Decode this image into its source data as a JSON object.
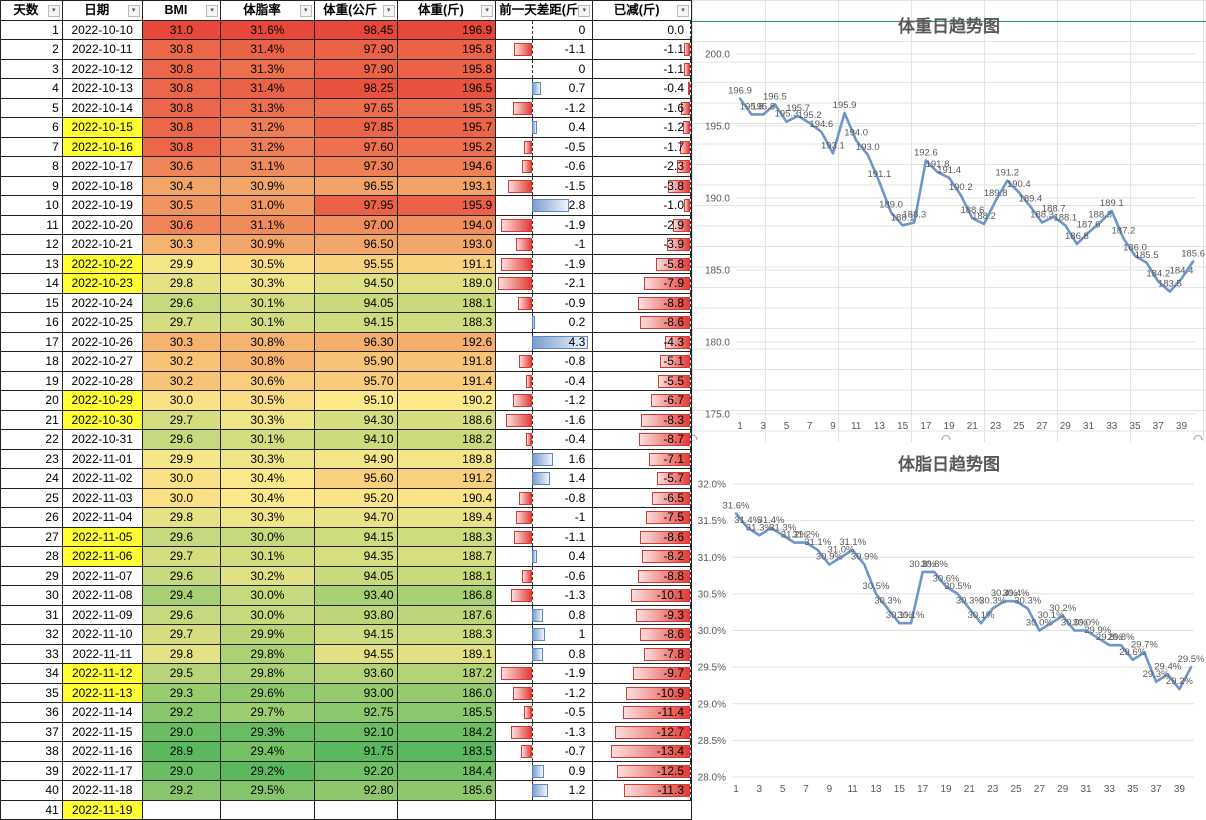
{
  "table": {
    "headers": [
      "天数",
      "日期",
      "BMI",
      "体脂率",
      "体重(公斤",
      "体重(斤)",
      "前一天差距(斤",
      "已减(斤)"
    ],
    "rows": [
      [
        "1",
        "2022-10-10",
        "31.0",
        "31.6%",
        "98.45",
        "196.9",
        "0",
        "0.0",
        0,
        0,
        false
      ],
      [
        "2",
        "2022-10-11",
        "30.8",
        "31.4%",
        "97.90",
        "195.8",
        "-1.1",
        "-1.1",
        -1.1,
        -1.1,
        false
      ],
      [
        "3",
        "2022-10-12",
        "30.8",
        "31.3%",
        "97.90",
        "195.8",
        "0",
        "-1.1",
        0,
        -1.1,
        false
      ],
      [
        "4",
        "2022-10-13",
        "30.8",
        "31.4%",
        "98.25",
        "196.5",
        "0.7",
        "-0.4",
        0.7,
        -0.4,
        false
      ],
      [
        "5",
        "2022-10-14",
        "30.8",
        "31.3%",
        "97.65",
        "195.3",
        "-1.2",
        "-1.6",
        -1.2,
        -1.6,
        false
      ],
      [
        "6",
        "2022-10-15",
        "30.8",
        "31.2%",
        "97.85",
        "195.7",
        "0.4",
        "-1.2",
        0.4,
        -1.2,
        true
      ],
      [
        "7",
        "2022-10-16",
        "30.8",
        "31.2%",
        "97.60",
        "195.2",
        "-0.5",
        "-1.7",
        -0.5,
        -1.7,
        true
      ],
      [
        "8",
        "2022-10-17",
        "30.6",
        "31.1%",
        "97.30",
        "194.6",
        "-0.6",
        "-2.3",
        -0.6,
        -2.3,
        false
      ],
      [
        "9",
        "2022-10-18",
        "30.4",
        "30.9%",
        "96.55",
        "193.1",
        "-1.5",
        "-3.8",
        -1.5,
        -3.8,
        false
      ],
      [
        "10",
        "2022-10-19",
        "30.5",
        "31.0%",
        "97.95",
        "195.9",
        "2.8",
        "-1.0",
        2.8,
        -1.0,
        false
      ],
      [
        "11",
        "2022-10-20",
        "30.6",
        "31.1%",
        "97.00",
        "194.0",
        "-1.9",
        "-2.9",
        -1.9,
        -2.9,
        false
      ],
      [
        "12",
        "2022-10-21",
        "30.3",
        "30.9%",
        "96.50",
        "193.0",
        "-1",
        "-3.9",
        -1,
        -3.9,
        false
      ],
      [
        "13",
        "2022-10-22",
        "29.9",
        "30.5%",
        "95.55",
        "191.1",
        "-1.9",
        "-5.8",
        -1.9,
        -5.8,
        true
      ],
      [
        "14",
        "2022-10-23",
        "29.8",
        "30.3%",
        "94.50",
        "189.0",
        "-2.1",
        "-7.9",
        -2.1,
        -7.9,
        true
      ],
      [
        "15",
        "2022-10-24",
        "29.6",
        "30.1%",
        "94.05",
        "188.1",
        "-0.9",
        "-8.8",
        -0.9,
        -8.8,
        false
      ],
      [
        "16",
        "2022-10-25",
        "29.7",
        "30.1%",
        "94.15",
        "188.3",
        "0.2",
        "-8.6",
        0.2,
        -8.6,
        false
      ],
      [
        "17",
        "2022-10-26",
        "30.3",
        "30.8%",
        "96.30",
        "192.6",
        "4.3",
        "-4.3",
        4.3,
        -4.3,
        false
      ],
      [
        "18",
        "2022-10-27",
        "30.2",
        "30.8%",
        "95.90",
        "191.8",
        "-0.8",
        "-5.1",
        -0.8,
        -5.1,
        false
      ],
      [
        "19",
        "2022-10-28",
        "30.2",
        "30.6%",
        "95.70",
        "191.4",
        "-0.4",
        "-5.5",
        -0.4,
        -5.5,
        false
      ],
      [
        "20",
        "2022-10-29",
        "30.0",
        "30.5%",
        "95.10",
        "190.2",
        "-1.2",
        "-6.7",
        -1.2,
        -6.7,
        true
      ],
      [
        "21",
        "2022-10-30",
        "29.7",
        "30.3%",
        "94.30",
        "188.6",
        "-1.6",
        "-8.3",
        -1.6,
        -8.3,
        true
      ],
      [
        "22",
        "2022-10-31",
        "29.6",
        "30.1%",
        "94.10",
        "188.2",
        "-0.4",
        "-8.7",
        -0.4,
        -8.7,
        false
      ],
      [
        "23",
        "2022-11-01",
        "29.9",
        "30.3%",
        "94.90",
        "189.8",
        "1.6",
        "-7.1",
        1.6,
        -7.1,
        false
      ],
      [
        "24",
        "2022-11-02",
        "30.0",
        "30.4%",
        "95.60",
        "191.2",
        "1.4",
        "-5.7",
        1.4,
        -5.7,
        false
      ],
      [
        "25",
        "2022-11-03",
        "30.0",
        "30.4%",
        "95.20",
        "190.4",
        "-0.8",
        "-6.5",
        -0.8,
        -6.5,
        false
      ],
      [
        "26",
        "2022-11-04",
        "29.8",
        "30.3%",
        "94.70",
        "189.4",
        "-1",
        "-7.5",
        -1,
        -7.5,
        false
      ],
      [
        "27",
        "2022-11-05",
        "29.6",
        "30.0%",
        "94.15",
        "188.3",
        "-1.1",
        "-8.6",
        -1.1,
        -8.6,
        true
      ],
      [
        "28",
        "2022-11-06",
        "29.7",
        "30.1%",
        "94.35",
        "188.7",
        "0.4",
        "-8.2",
        0.4,
        -8.2,
        true
      ],
      [
        "29",
        "2022-11-07",
        "29.6",
        "30.2%",
        "94.05",
        "188.1",
        "-0.6",
        "-8.8",
        -0.6,
        -8.8,
        false
      ],
      [
        "30",
        "2022-11-08",
        "29.4",
        "30.0%",
        "93.40",
        "186.8",
        "-1.3",
        "-10.1",
        -1.3,
        -10.1,
        false
      ],
      [
        "31",
        "2022-11-09",
        "29.6",
        "30.0%",
        "93.80",
        "187.6",
        "0.8",
        "-9.3",
        0.8,
        -9.3,
        false
      ],
      [
        "32",
        "2022-11-10",
        "29.7",
        "29.9%",
        "94.15",
        "188.3",
        "1",
        "-8.6",
        1,
        -8.6,
        false
      ],
      [
        "33",
        "2022-11-11",
        "29.8",
        "29.8%",
        "94.55",
        "189.1",
        "0.8",
        "-7.8",
        0.8,
        -7.8,
        false
      ],
      [
        "34",
        "2022-11-12",
        "29.5",
        "29.8%",
        "93.60",
        "187.2",
        "-1.9",
        "-9.7",
        -1.9,
        -9.7,
        true
      ],
      [
        "35",
        "2022-11-13",
        "29.3",
        "29.6%",
        "93.00",
        "186.0",
        "-1.2",
        "-10.9",
        -1.2,
        -10.9,
        true
      ],
      [
        "36",
        "2022-11-14",
        "29.2",
        "29.7%",
        "92.75",
        "185.5",
        "-0.5",
        "-11.4",
        -0.5,
        -11.4,
        false
      ],
      [
        "37",
        "2022-11-15",
        "29.0",
        "29.3%",
        "92.10",
        "184.2",
        "-1.3",
        "-12.7",
        -1.3,
        -12.7,
        false
      ],
      [
        "38",
        "2022-11-16",
        "28.9",
        "29.4%",
        "91.75",
        "183.5",
        "-0.7",
        "-13.4",
        -0.7,
        -13.4,
        false
      ],
      [
        "39",
        "2022-11-17",
        "29.0",
        "29.2%",
        "92.20",
        "184.4",
        "0.9",
        "-12.5",
        0.9,
        -12.5,
        false
      ],
      [
        "40",
        "2022-11-18",
        "29.2",
        "29.5%",
        "92.80",
        "185.6",
        "1.2",
        "-11.3",
        1.2,
        -11.3,
        false
      ],
      [
        "41",
        "2022-11-19",
        "",
        "",
        "",
        "",
        "",
        "",
        null,
        null,
        true
      ]
    ]
  },
  "colors": {
    "heat_high": "#e8483a",
    "heat_mid": "#fbe98a",
    "heat_low": "#5cb85f",
    "highlight": "#ffff33",
    "line": "#6f96cc"
  },
  "chart_data": [
    {
      "type": "line",
      "title": "体重日趋势图",
      "x": [
        1,
        2,
        3,
        4,
        5,
        6,
        7,
        8,
        9,
        10,
        11,
        12,
        13,
        14,
        15,
        16,
        17,
        18,
        19,
        20,
        21,
        22,
        23,
        24,
        25,
        26,
        27,
        28,
        29,
        30,
        31,
        32,
        33,
        34,
        35,
        36,
        37,
        38,
        39,
        40
      ],
      "x_tick_labels": [
        "1",
        "3",
        "5",
        "7",
        "9",
        "11",
        "13",
        "15",
        "17",
        "19",
        "21",
        "23",
        "25",
        "27",
        "29",
        "31",
        "33",
        "35",
        "37",
        "39"
      ],
      "y_tick_labels": [
        "175.0",
        "180.0",
        "185.0",
        "190.0",
        "195.0",
        "200.0"
      ],
      "ylim": [
        175,
        200
      ],
      "y_ticks": [
        175,
        180,
        185,
        190,
        195,
        200
      ],
      "series": [
        {
          "values": [
            196.9,
            195.8,
            195.8,
            196.5,
            195.3,
            195.7,
            195.2,
            194.6,
            193.1,
            195.9,
            194.0,
            193.0,
            191.1,
            189.0,
            188.1,
            188.3,
            192.6,
            191.8,
            191.4,
            190.2,
            188.6,
            188.2,
            189.8,
            191.2,
            190.4,
            189.4,
            188.3,
            188.7,
            188.1,
            186.8,
            187.6,
            188.3,
            189.1,
            187.2,
            186.0,
            185.5,
            184.2,
            183.5,
            184.4,
            185.6
          ],
          "labels": [
            "196.9",
            "195.8",
            "195.8",
            "196.5",
            "195.3",
            "195.7",
            "195.2",
            "194.6",
            "193.1",
            "195.9",
            "194.0",
            "193.0",
            "191.1",
            "189.0",
            "188.1",
            "188.3",
            "192.6",
            "191.8",
            "191.4",
            "190.2",
            "188.6",
            "188.2",
            "189.8",
            "191.2",
            "190.4",
            "189.4",
            "188.3",
            "188.7",
            "188.1",
            "186.8",
            "187.6",
            "188.3",
            "189.1",
            "187.2",
            "186.0",
            "185.5",
            "184.2",
            "183.5",
            "184.4",
            "185.6"
          ]
        }
      ],
      "grid": true
    },
    {
      "type": "line",
      "title": "体脂日趋势图",
      "x": [
        1,
        2,
        3,
        4,
        5,
        6,
        7,
        8,
        9,
        10,
        11,
        12,
        13,
        14,
        15,
        16,
        17,
        18,
        19,
        20,
        21,
        22,
        23,
        24,
        25,
        26,
        27,
        28,
        29,
        30,
        31,
        32,
        33,
        34,
        35,
        36,
        37,
        38,
        39,
        40
      ],
      "x_tick_labels": [
        "1",
        "3",
        "5",
        "7",
        "9",
        "11",
        "13",
        "15",
        "17",
        "19",
        "21",
        "23",
        "25",
        "27",
        "29",
        "31",
        "33",
        "35",
        "37",
        "39"
      ],
      "y_tick_labels": [
        "28.0%",
        "28.5%",
        "29.0%",
        "29.5%",
        "30.0%",
        "30.5%",
        "31.0%",
        "31.5%",
        "32.0%"
      ],
      "ylim": [
        28.0,
        32.0
      ],
      "y_ticks": [
        28.0,
        28.5,
        29.0,
        29.5,
        30.0,
        30.5,
        31.0,
        31.5,
        32.0
      ],
      "series": [
        {
          "values": [
            31.6,
            31.4,
            31.3,
            31.4,
            31.3,
            31.2,
            31.2,
            31.1,
            30.9,
            31.0,
            31.1,
            30.9,
            30.5,
            30.3,
            30.1,
            30.1,
            30.8,
            30.8,
            30.6,
            30.5,
            30.3,
            30.1,
            30.3,
            30.4,
            30.4,
            30.3,
            30.0,
            30.1,
            30.2,
            30.0,
            30.0,
            29.9,
            29.8,
            29.8,
            29.6,
            29.7,
            29.3,
            29.4,
            29.2,
            29.5
          ],
          "labels": [
            "31.6%",
            "31.4%",
            "31.3%",
            "31.4%",
            "31.3%",
            "31.2%",
            "31.2%",
            "31.1%",
            "30.9%",
            "31.0%",
            "31.1%",
            "30.9%",
            "30.5%",
            "30.3%",
            "30.1%",
            "30.1%",
            "30.8%",
            "30.8%",
            "30.6%",
            "30.5%",
            "30.3%",
            "30.1%",
            "30.3%",
            "30.4%",
            "30.4%",
            "30.3%",
            "30.0%",
            "30.1%",
            "30.2%",
            "30.0%",
            "30.0%",
            "29.9%",
            "29.8%",
            "29.8%",
            "29.6%",
            "29.7%",
            "29.3%",
            "29.4%",
            "29.2%",
            "29.5%"
          ]
        }
      ],
      "grid": true
    }
  ]
}
